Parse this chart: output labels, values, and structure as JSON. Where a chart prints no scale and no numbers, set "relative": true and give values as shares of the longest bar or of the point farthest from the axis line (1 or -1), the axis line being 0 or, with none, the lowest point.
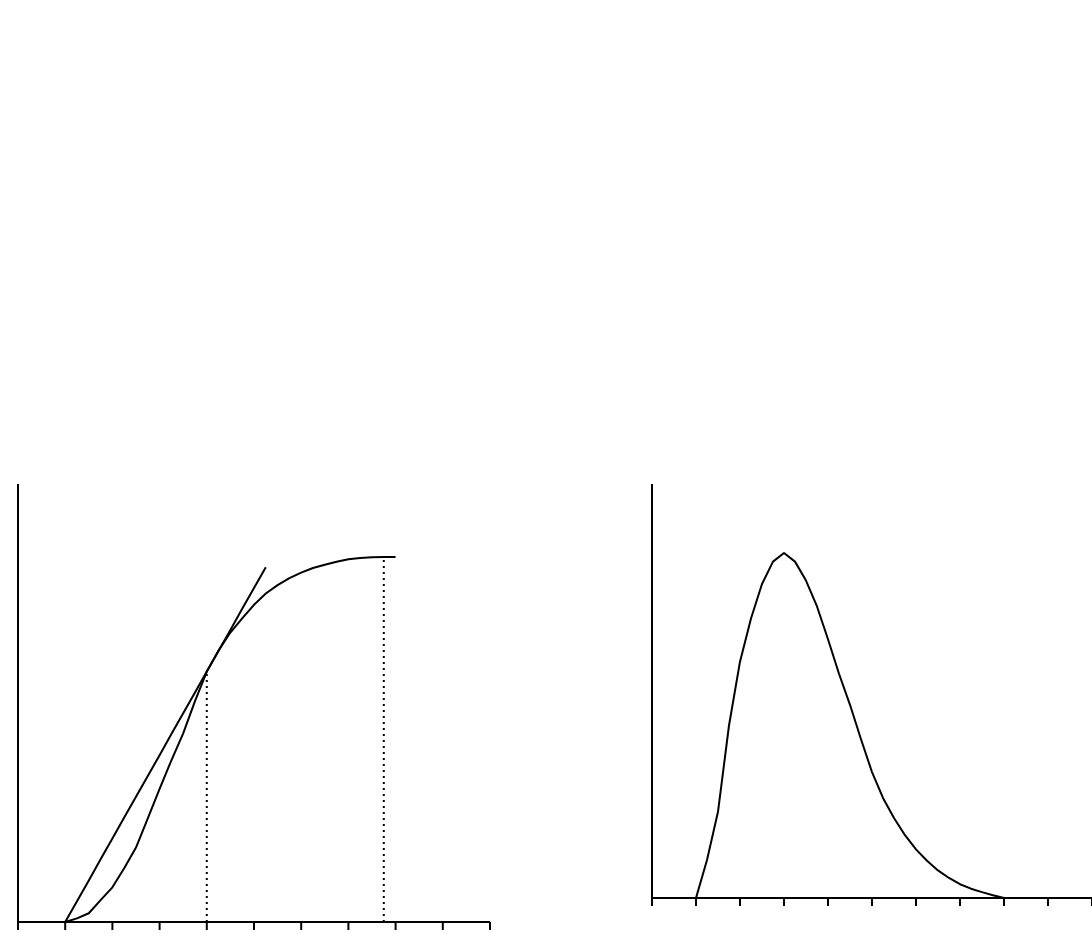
{
  "chart_data": [
    {
      "type": "line",
      "relative": true,
      "categories": [
        null,
        null,
        null,
        null,
        null,
        null,
        null,
        null,
        null,
        null,
        null,
        null,
        null,
        null,
        null,
        null,
        null,
        null,
        null,
        null,
        null,
        null,
        null,
        null,
        null,
        null,
        null,
        null,
        null,
        null,
        null,
        null,
        null,
        null,
        null,
        null,
        null,
        null,
        null,
        null,
        null
      ],
      "marker": "none",
      "grid": false,
      "series": [
        {
          "color": "#000000",
          "values": [
            null,
            null,
            null,
            null,
            0,
            0.01,
            0.024,
            0.06,
            0.095,
            0.147,
            0.204,
            0.284,
            0.365,
            0.443,
            0.517,
            0.605,
            0.686,
            0.744,
            0.793,
            0.832,
            0.869,
            0.9,
            0.923,
            0.942,
            0.957,
            0.97,
            0.979,
            0.987,
            0.994,
            0.997,
            0.999,
            1,
            1,
            null,
            null,
            null,
            null,
            null,
            null,
            null,
            null
          ]
        },
        {
          "color": "#000000",
          "values": [
            null,
            null,
            null,
            null,
            0,
            0.057,
            0.114,
            0.172,
            0.229,
            0.286,
            0.343,
            0.4,
            0.457,
            0.515,
            0.572,
            0.629,
            0.686,
            0.743,
            0.8,
            0.858,
            0.915,
            0.972,
            null,
            null,
            null,
            null,
            null,
            null,
            null,
            null,
            null,
            null,
            null,
            null,
            null,
            null,
            null,
            null,
            null,
            null,
            null
          ]
        }
      ]
    },
    {
      "type": "line",
      "relative": true,
      "categories": [
        null,
        null,
        null,
        null,
        null,
        null,
        null,
        null,
        null,
        null,
        null,
        null,
        null,
        null,
        null,
        null,
        null,
        null,
        null,
        null,
        null,
        null,
        null,
        null,
        null,
        null,
        null,
        null,
        null,
        null,
        null,
        null,
        null,
        null,
        null,
        null,
        null,
        null,
        null,
        null,
        null
      ],
      "marker": "none",
      "grid": false,
      "series": [
        {
          "color": "#000000",
          "values": [
            null,
            null,
            null,
            null,
            0,
            0.11,
            0.25,
            0.5,
            0.685,
            0.81,
            0.91,
            0.975,
            1,
            0.975,
            0.92,
            0.845,
            0.75,
            0.65,
            0.56,
            0.46,
            0.365,
            0.29,
            0.232,
            0.182,
            0.141,
            0.108,
            0.08,
            0.058,
            0.04,
            0.027,
            0.017,
            0.008,
            0,
            null,
            null,
            null,
            null,
            null,
            null,
            null,
            null
          ]
        }
      ]
    }
  ]
}
